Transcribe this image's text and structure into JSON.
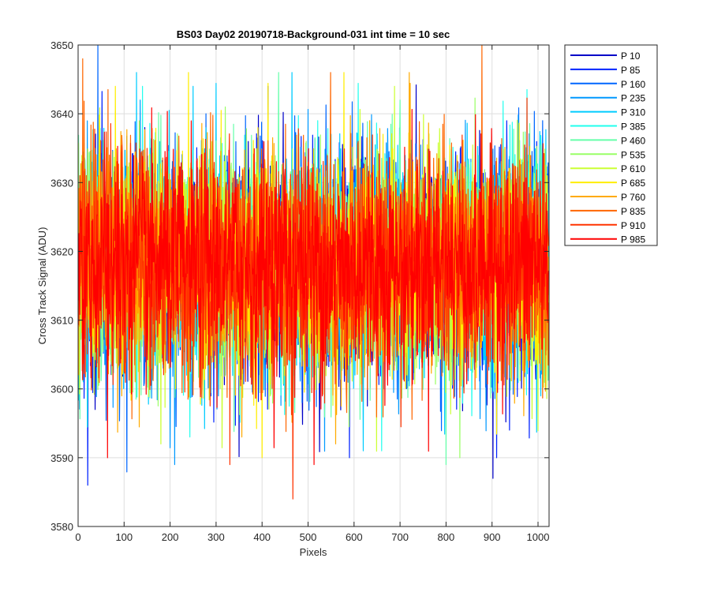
{
  "chart_data": {
    "type": "line",
    "title": "BS03 Day02 20190718-Background-031 int time = 10 sec",
    "xlabel": "Pixels",
    "ylabel": "Cross Track Signal (ADU)",
    "xlim": [
      0,
      1024
    ],
    "ylim": [
      3580,
      3650
    ],
    "xticks": [
      0,
      100,
      200,
      300,
      400,
      500,
      600,
      700,
      800,
      900,
      1000
    ],
    "yticks": [
      3580,
      3590,
      3600,
      3610,
      3620,
      3630,
      3640,
      3650
    ],
    "grid": true,
    "legend_position": "outside-top-right",
    "noise": {
      "mean": 3618,
      "sigma": 8
    },
    "series": [
      {
        "name": "P 10",
        "color": "#0000c8",
        "extremes": [
          [
            413,
            3644
          ],
          [
            902,
            3587
          ]
        ]
      },
      {
        "name": "P 85",
        "color": "#0022ff",
        "extremes": [
          [
            590,
            3590
          ],
          [
            910,
            3590
          ]
        ]
      },
      {
        "name": "P 160",
        "color": "#0066ff",
        "extremes": [
          [
            43,
            3650
          ],
          [
            1010,
            3639
          ]
        ]
      },
      {
        "name": "P 235",
        "color": "#0099ff",
        "extremes": [
          [
            210,
            3589
          ],
          [
            135,
            3642
          ]
        ]
      },
      {
        "name": "P 310",
        "color": "#00ccff",
        "extremes": [
          [
            250,
            3644
          ],
          [
            620,
            3591
          ]
        ]
      },
      {
        "name": "P 385",
        "color": "#22ffee",
        "extremes": [
          [
            140,
            3644
          ],
          [
            660,
            3591
          ]
        ]
      },
      {
        "name": "P 460",
        "color": "#66ffaa",
        "extremes": [
          [
            700,
            3642
          ],
          [
            800,
            3589
          ]
        ]
      },
      {
        "name": "P 535",
        "color": "#99ff66",
        "extremes": [
          [
            830,
            3590
          ],
          [
            320,
            3641
          ]
        ]
      },
      {
        "name": "P 610",
        "color": "#ccff33",
        "extremes": [
          [
            688,
            3644
          ],
          [
            180,
            3592
          ]
        ]
      },
      {
        "name": "P 685",
        "color": "#ffee00",
        "extremes": [
          [
            400,
            3590
          ],
          [
            81,
            3644
          ]
        ]
      },
      {
        "name": "P 760",
        "color": "#ffaa00",
        "extremes": [
          [
            720,
            3646
          ],
          [
            560,
            3592
          ]
        ]
      },
      {
        "name": "P 835",
        "color": "#ff6600",
        "extremes": [
          [
            878,
            3650
          ],
          [
            10,
            3648
          ]
        ]
      },
      {
        "name": "P 910",
        "color": "#ff3300",
        "extremes": [
          [
            467,
            3584
          ],
          [
            330,
            3589
          ]
        ]
      },
      {
        "name": "P 985",
        "color": "#ff0000",
        "extremes": [
          [
            64,
            3590
          ],
          [
            513,
            3589
          ]
        ]
      }
    ]
  }
}
